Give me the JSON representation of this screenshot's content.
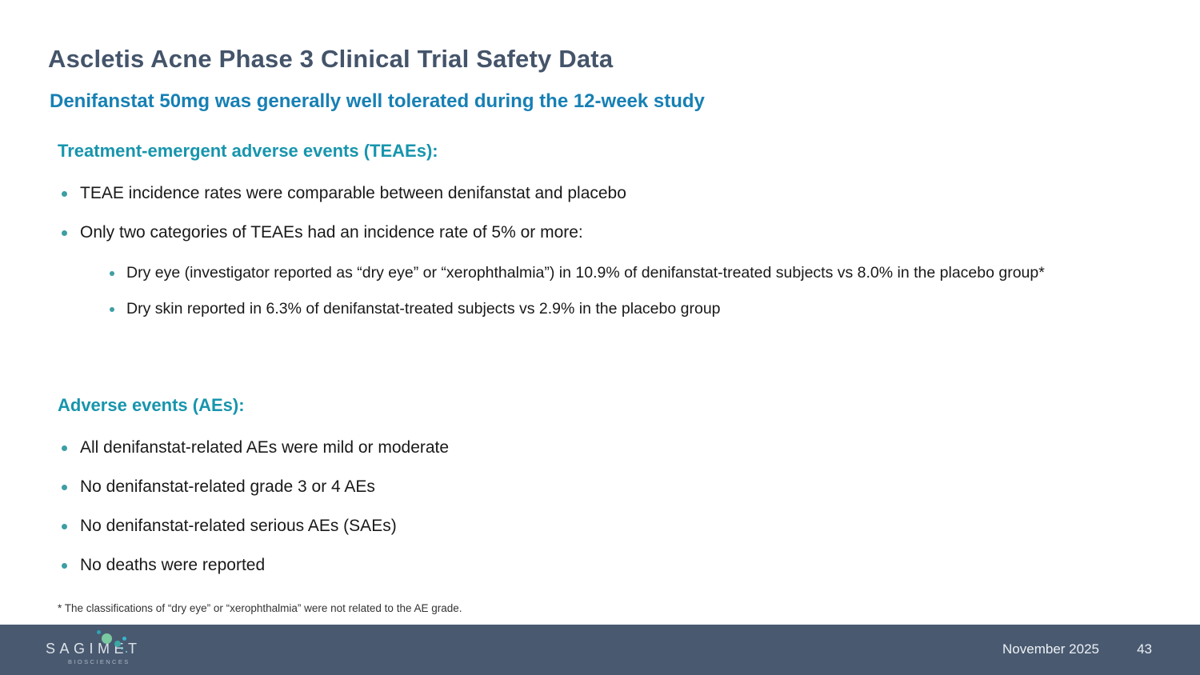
{
  "slide": {
    "title": "Ascletis Acne Phase 3 Clinical Trial Safety Data",
    "subtitle": "Denifanstat 50mg was generally well tolerated during the 12-week study",
    "sections": [
      {
        "heading": "Treatment-emergent adverse events (TEAEs):",
        "bullets": [
          {
            "level": 1,
            "text": "TEAE incidence rates were comparable between denifanstat and placebo"
          },
          {
            "level": 1,
            "text": "Only two categories of TEAEs had an incidence rate of 5% or more:"
          },
          {
            "level": 2,
            "text": "Dry eye (investigator reported as “dry eye” or “xerophthalmia”) in 10.9% of denifanstat-treated subjects vs 8.0% in the placebo group*"
          },
          {
            "level": 2,
            "text": "Dry skin reported in 6.3% of denifanstat-treated subjects vs 2.9% in the placebo group"
          }
        ]
      },
      {
        "heading": "Adverse events (AEs):",
        "bullets": [
          {
            "level": 1,
            "text": "All denifanstat-related AEs were mild or moderate"
          },
          {
            "level": 1,
            "text": "No denifanstat-related grade 3 or 4 AEs"
          },
          {
            "level": 1,
            "text": "No denifanstat-related serious AEs (SAEs)"
          },
          {
            "level": 1,
            "text": "No deaths were reported"
          }
        ]
      }
    ],
    "footnote": "* The classifications of “dry eye” or “xerophthalmia” were not related to the AE grade.",
    "footer": {
      "logo_text": "SAGIMET",
      "logo_subtext": "BIOSCIENCES",
      "date": "November 2025",
      "page_number": "43"
    },
    "colors": {
      "title": "#44546A",
      "subtitle": "#1780B4",
      "heading": "#1795AD",
      "bullet_dot": "#3D9EA4",
      "body_text": "#191919",
      "footer_bg": "#495970",
      "footer_text": "#EDF1F5"
    }
  }
}
